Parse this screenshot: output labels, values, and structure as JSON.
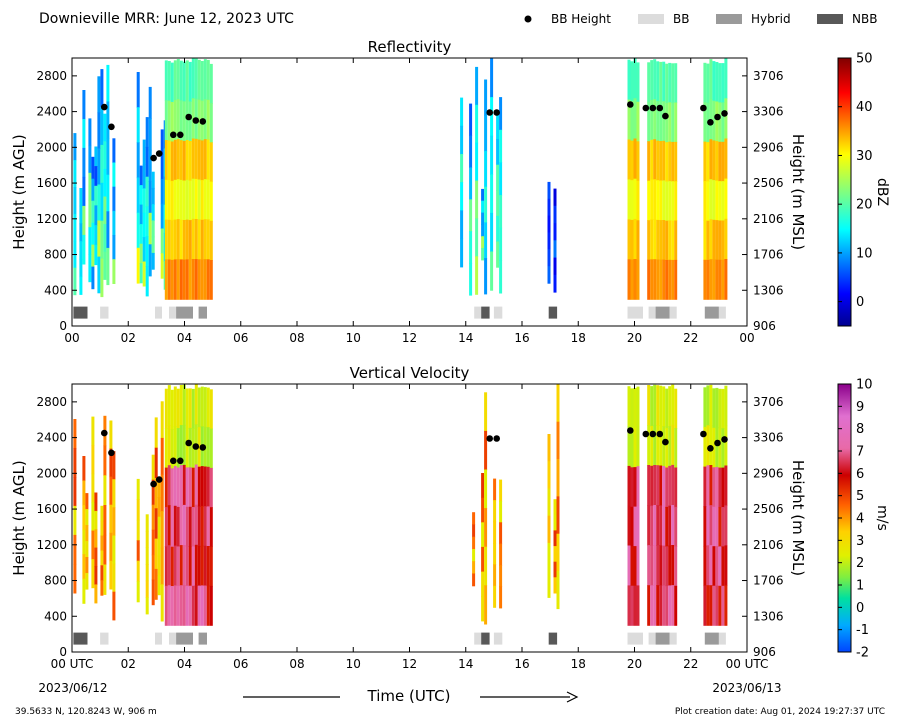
{
  "header": {
    "title": "Downieville MRR:  June 12, 2023 UTC",
    "legend": [
      {
        "label": "BB Height",
        "kind": "dot",
        "color": "#000000"
      },
      {
        "label": "BB",
        "kind": "box",
        "color": "#dcdcdc"
      },
      {
        "label": "Hybrid",
        "kind": "box",
        "color": "#9a9a9a"
      },
      {
        "label": "NBB",
        "kind": "box",
        "color": "#585858"
      }
    ]
  },
  "footer": {
    "coords": "39.5633 N, 120.8243 W, 906 m",
    "creation": "Plot creation date: Aug 01, 2024 19:27:37 UTC",
    "xlabel": "Time (UTC)",
    "start_date": "2023/06/12",
    "end_date": "2023/06/13"
  },
  "chart_data": [
    {
      "type": "heatmap",
      "title": "Reflectivity",
      "ylabel": "Height (m AGL)",
      "ylabel_right": "Height (m MSL)",
      "yticks": [
        0,
        400,
        800,
        1200,
        1600,
        2000,
        2400,
        2800
      ],
      "yticks_right": [
        906,
        1306,
        1706,
        2106,
        2506,
        2906,
        3306,
        3706
      ],
      "xticks": [
        "00",
        "02",
        "04",
        "06",
        "08",
        "10",
        "12",
        "14",
        "16",
        "18",
        "20",
        "22",
        "00"
      ],
      "xlim": [
        0,
        24
      ],
      "ylim": [
        0,
        3000
      ],
      "colorbar": {
        "label": "dBZ",
        "range": [
          -5,
          50
        ],
        "ticks": [
          0,
          10,
          20,
          30,
          40,
          50
        ],
        "colormap": "jet"
      },
      "precip_bands": [
        {
          "x0": 0.05,
          "x1": 1.5,
          "level": "mixed"
        },
        {
          "x0": 2.3,
          "x1": 3.3,
          "level": "mixed"
        },
        {
          "x0": 3.3,
          "x1": 4.9,
          "level": "strong"
        },
        {
          "x0": 13.8,
          "x1": 15.2,
          "level": "mixed"
        },
        {
          "x0": 16.8,
          "x1": 17.4,
          "level": "weak"
        },
        {
          "x0": 19.75,
          "x1": 20.15,
          "level": "strong"
        },
        {
          "x0": 20.45,
          "x1": 21.5,
          "level": "strong"
        },
        {
          "x0": 22.45,
          "x1": 23.25,
          "level": "strong"
        }
      ]
    },
    {
      "type": "heatmap",
      "title": "Vertical Velocity",
      "ylabel": "Height (m AGL)",
      "ylabel_right": "Height (m MSL)",
      "yticks": [
        0,
        400,
        800,
        1200,
        1600,
        2000,
        2400,
        2800
      ],
      "yticks_right": [
        906,
        1306,
        1706,
        2106,
        2506,
        2906,
        3306,
        3706
      ],
      "xticks": [
        "00 UTC",
        "02",
        "04",
        "06",
        "08",
        "10",
        "12",
        "14",
        "16",
        "18",
        "20",
        "22",
        "00 UTC"
      ],
      "xlim": [
        0,
        24
      ],
      "ylim": [
        0,
        3000
      ],
      "colorbar": {
        "label": "m/s",
        "range": [
          -2,
          10
        ],
        "ticks": [
          -2,
          -1,
          0,
          1,
          2,
          3,
          4,
          5,
          6,
          7,
          8,
          9,
          10
        ],
        "colormap": "velocity"
      },
      "precip_bands": [
        {
          "x0": 0.05,
          "x1": 1.5,
          "level": "mixed"
        },
        {
          "x0": 2.3,
          "x1": 3.3,
          "level": "mixed"
        },
        {
          "x0": 3.3,
          "x1": 4.9,
          "level": "strong"
        },
        {
          "x0": 13.8,
          "x1": 15.2,
          "level": "mixed"
        },
        {
          "x0": 16.8,
          "x1": 17.4,
          "level": "weak"
        },
        {
          "x0": 19.75,
          "x1": 20.15,
          "level": "strong"
        },
        {
          "x0": 20.45,
          "x1": 21.5,
          "level": "strong"
        },
        {
          "x0": 22.45,
          "x1": 23.25,
          "level": "strong"
        }
      ]
    }
  ],
  "bb_heights": [
    {
      "t": 1.15,
      "h": 2450
    },
    {
      "t": 1.4,
      "h": 2230
    },
    {
      "t": 2.9,
      "h": 1880
    },
    {
      "t": 3.1,
      "h": 1930
    },
    {
      "t": 3.6,
      "h": 2140
    },
    {
      "t": 3.85,
      "h": 2140
    },
    {
      "t": 4.15,
      "h": 2340
    },
    {
      "t": 4.4,
      "h": 2300
    },
    {
      "t": 4.65,
      "h": 2290
    },
    {
      "t": 14.85,
      "h": 2390
    },
    {
      "t": 15.1,
      "h": 2390
    },
    {
      "t": 19.85,
      "h": 2480
    },
    {
      "t": 20.4,
      "h": 2440
    },
    {
      "t": 20.65,
      "h": 2440
    },
    {
      "t": 20.9,
      "h": 2440
    },
    {
      "t": 21.1,
      "h": 2350
    },
    {
      "t": 22.45,
      "h": 2440
    },
    {
      "t": 22.7,
      "h": 2280
    },
    {
      "t": 22.95,
      "h": 2340
    },
    {
      "t": 23.2,
      "h": 2380
    }
  ],
  "bb_type_strip": [
    {
      "t0": 0.05,
      "t1": 0.55,
      "type": "NBB"
    },
    {
      "t0": 1.0,
      "t1": 1.3,
      "type": "BB"
    },
    {
      "t0": 2.95,
      "t1": 3.2,
      "type": "BB"
    },
    {
      "t0": 3.45,
      "t1": 3.7,
      "type": "BB"
    },
    {
      "t0": 3.7,
      "t1": 4.3,
      "type": "Hybrid"
    },
    {
      "t0": 4.5,
      "t1": 4.8,
      "type": "Hybrid"
    },
    {
      "t0": 14.3,
      "t1": 14.55,
      "type": "BB"
    },
    {
      "t0": 14.55,
      "t1": 14.85,
      "type": "NBB"
    },
    {
      "t0": 15.0,
      "t1": 15.3,
      "type": "BB"
    },
    {
      "t0": 16.95,
      "t1": 17.25,
      "type": "NBB"
    },
    {
      "t0": 19.75,
      "t1": 20.3,
      "type": "BB"
    },
    {
      "t0": 20.5,
      "t1": 20.75,
      "type": "BB"
    },
    {
      "t0": 20.75,
      "t1": 21.25,
      "type": "Hybrid"
    },
    {
      "t0": 21.25,
      "t1": 21.5,
      "type": "BB"
    },
    {
      "t0": 22.5,
      "t1": 23.0,
      "type": "Hybrid"
    },
    {
      "t0": 23.0,
      "t1": 23.25,
      "type": "BB"
    }
  ]
}
